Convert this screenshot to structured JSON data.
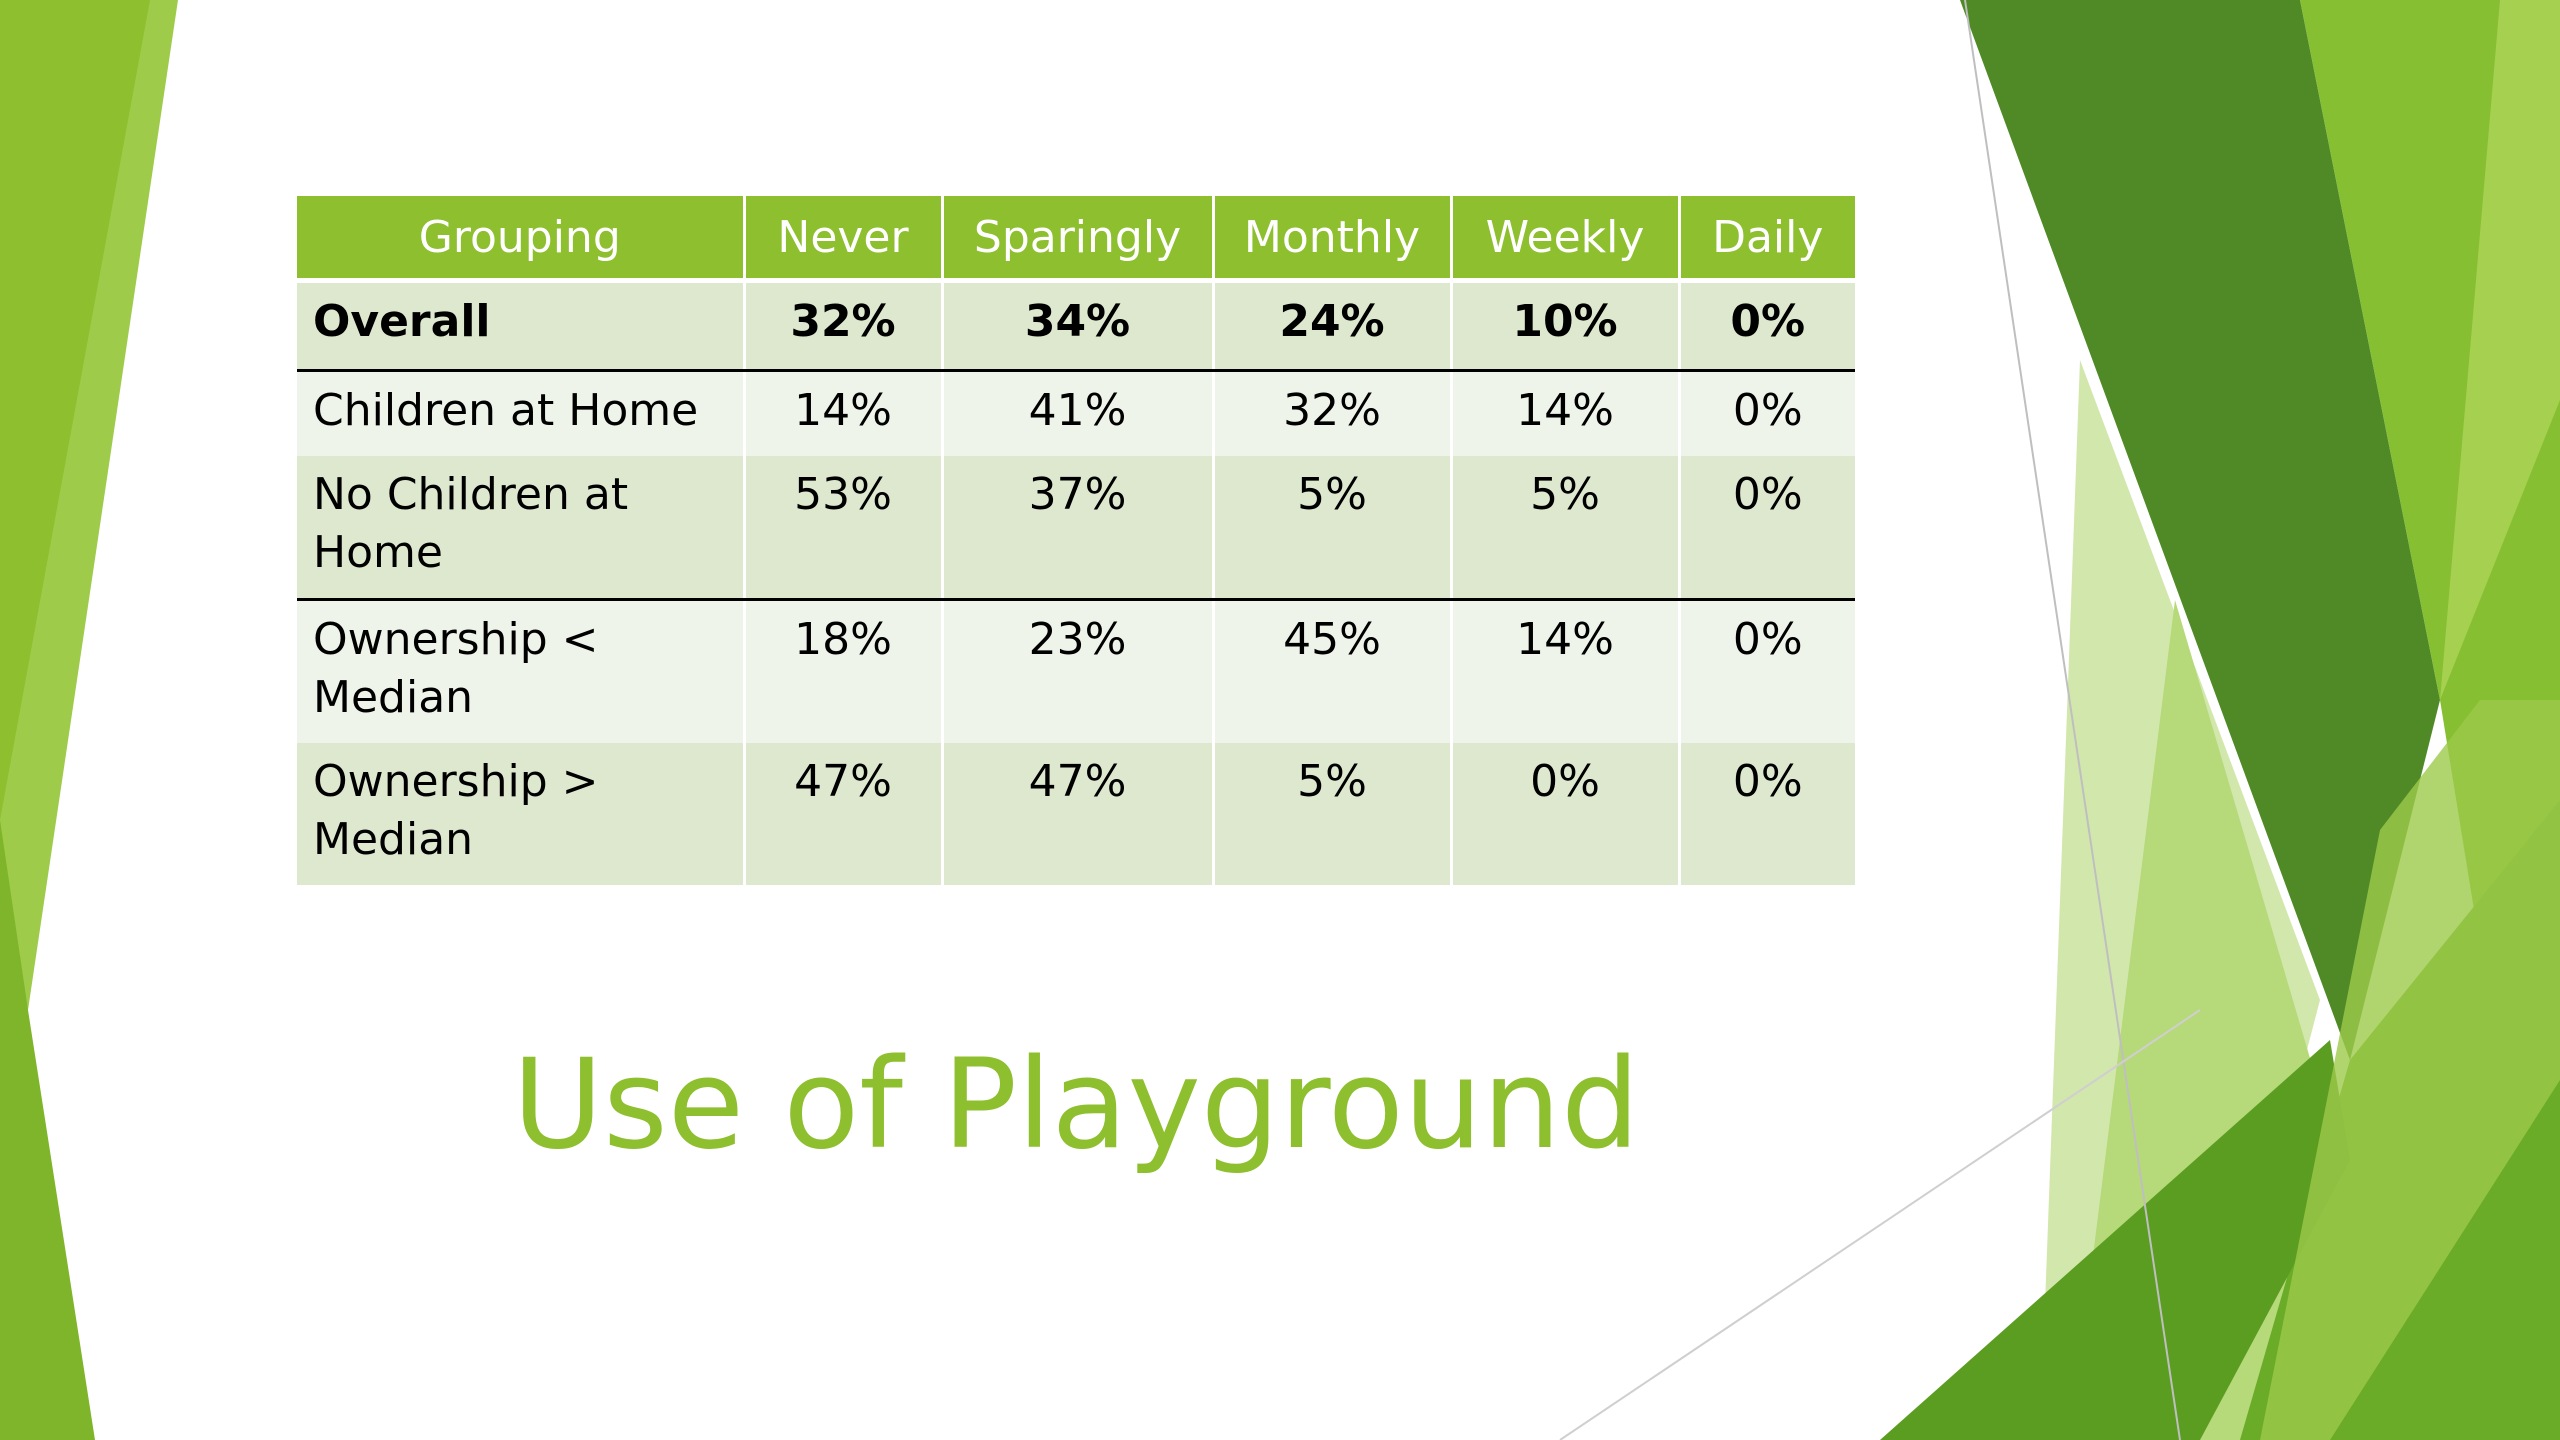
{
  "title": "Use of Playground",
  "table": {
    "headers": [
      "Grouping",
      "Never",
      "Sparingly",
      "Monthly",
      "Weekly",
      "Daily"
    ],
    "rows": [
      [
        "Overall",
        "32%",
        "34%",
        "24%",
        "10%",
        "0%"
      ],
      [
        "Children at Home",
        "14%",
        "41%",
        "32%",
        "14%",
        "0%"
      ],
      [
        "No Children at Home",
        "53%",
        "37%",
        "5%",
        "5%",
        "0%"
      ],
      [
        "Ownership < Median",
        "18%",
        "23%",
        "45%",
        "14%",
        "0%"
      ],
      [
        "Ownership > Median",
        "47%",
        "47%",
        "5%",
        "0%",
        "0%"
      ]
    ]
  },
  "theme": {
    "accent": "#8dbf2e",
    "dark_green": "#4f8a27",
    "light_green": "#c8e09b",
    "row_dark": "#dde8cf",
    "row_light": "#eef4e9"
  }
}
